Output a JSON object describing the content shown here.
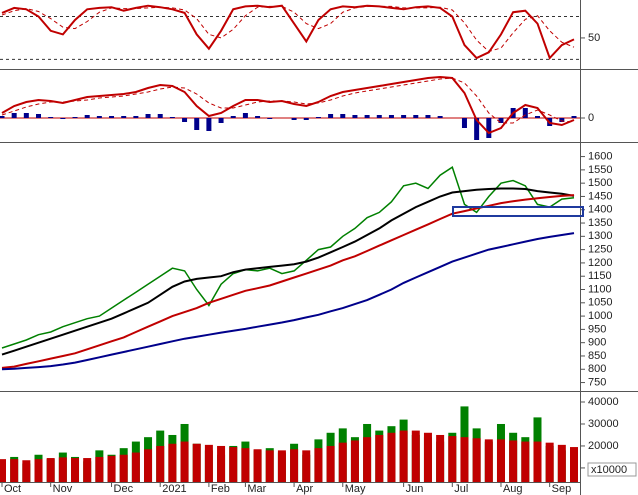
{
  "chart_data": [
    {
      "type": "line",
      "ylim": [
        8,
        103
      ],
      "yticks": [
        50
      ],
      "hlines": [
        80,
        20
      ],
      "series": [
        {
          "color": "#c00000",
          "values": [
            85,
            92,
            90,
            80,
            60,
            55,
            75,
            90,
            92,
            93,
            88,
            92,
            95,
            93,
            90,
            85,
            55,
            35,
            60,
            90,
            94,
            95,
            93,
            95,
            70,
            45,
            75,
            90,
            94,
            93,
            95,
            94,
            92,
            90,
            93,
            94,
            92,
            80,
            40,
            22,
            30,
            55,
            86,
            88,
            70,
            22,
            40,
            48
          ]
        },
        {
          "color": "#c00000",
          "dash": true,
          "values": [
            82,
            88,
            91,
            87,
            77,
            65,
            63,
            73,
            86,
            92,
            91,
            91,
            92,
            93,
            92,
            89,
            77,
            55,
            50,
            62,
            81,
            93,
            94,
            94,
            86,
            70,
            63,
            70,
            86,
            92,
            94,
            94,
            94,
            92,
            92,
            92,
            93,
            89,
            71,
            47,
            31,
            36,
            57,
            76,
            81,
            60,
            44,
            37
          ]
        }
      ]
    },
    {
      "type": "line",
      "ylim": [
        -22,
        46
      ],
      "yticks": [
        0
      ],
      "series": [
        {
          "type": "bar",
          "color": "#00008b",
          "values": [
            2,
            5,
            5,
            4,
            1,
            -1,
            1,
            3,
            2,
            2,
            2,
            2,
            4,
            4,
            1,
            -4,
            -12,
            -13,
            -5,
            2,
            5,
            2,
            -1,
            0,
            -2,
            -2,
            1,
            4,
            4,
            3,
            3,
            3,
            3,
            3,
            3,
            3,
            2,
            0,
            -10,
            -24,
            -20,
            -5,
            10,
            10,
            2,
            -8,
            -4,
            2
          ]
        },
        {
          "color": "#c00000",
          "values": [
            5,
            12,
            16,
            18,
            17,
            15,
            18,
            21,
            22,
            23,
            24,
            26,
            30,
            33,
            32,
            26,
            12,
            2,
            5,
            12,
            18,
            18,
            16,
            17,
            14,
            12,
            16,
            22,
            26,
            28,
            30,
            32,
            34,
            36,
            38,
            40,
            41,
            40,
            25,
            -2,
            -15,
            -10,
            5,
            13,
            10,
            -5,
            -7,
            -2
          ]
        },
        {
          "color": "#c00000",
          "dash": true,
          "values": [
            3,
            7,
            11,
            14,
            16,
            16,
            17,
            18,
            20,
            21,
            22,
            24,
            26,
            29,
            31,
            30,
            24,
            15,
            10,
            10,
            13,
            16,
            17,
            17,
            16,
            14,
            15,
            18,
            22,
            25,
            27,
            29,
            31,
            33,
            35,
            37,
            39,
            40,
            35,
            22,
            5,
            -5,
            -5,
            3,
            8,
            3,
            -3,
            -4
          ]
        }
      ]
    },
    {
      "type": "line",
      "ylim": [
        722,
        1636
      ],
      "yticks": [
        1600,
        1550,
        1500,
        1450,
        1400,
        1350,
        1300,
        1250,
        1200,
        1150,
        1100,
        1050,
        1000,
        950,
        900,
        850,
        800,
        750
      ],
      "series": [
        {
          "color": "#008000",
          "values": [
            880,
            895,
            910,
            930,
            940,
            960,
            975,
            990,
            1000,
            1030,
            1060,
            1090,
            1120,
            1150,
            1180,
            1170,
            1100,
            1040,
            1120,
            1160,
            1175,
            1170,
            1180,
            1160,
            1170,
            1210,
            1250,
            1260,
            1300,
            1330,
            1370,
            1390,
            1430,
            1490,
            1500,
            1480,
            1530,
            1560,
            1420,
            1390,
            1450,
            1500,
            1510,
            1490,
            1420,
            1410,
            1440,
            1445
          ]
        },
        {
          "color": "#000000",
          "values": [
            855,
            870,
            885,
            900,
            915,
            930,
            945,
            960,
            975,
            990,
            1010,
            1030,
            1050,
            1080,
            1110,
            1130,
            1140,
            1145,
            1150,
            1165,
            1175,
            1180,
            1185,
            1190,
            1195,
            1205,
            1220,
            1240,
            1260,
            1280,
            1305,
            1330,
            1360,
            1385,
            1410,
            1430,
            1450,
            1465,
            1470,
            1475,
            1478,
            1480,
            1480,
            1478,
            1470,
            1465,
            1460,
            1452
          ]
        },
        {
          "color": "#c00000",
          "values": [
            805,
            810,
            820,
            830,
            840,
            850,
            860,
            875,
            890,
            905,
            920,
            940,
            960,
            980,
            1000,
            1015,
            1030,
            1050,
            1065,
            1080,
            1095,
            1105,
            1115,
            1130,
            1145,
            1160,
            1175,
            1190,
            1210,
            1225,
            1245,
            1265,
            1285,
            1305,
            1325,
            1345,
            1365,
            1385,
            1395,
            1405,
            1415,
            1425,
            1432,
            1438,
            1443,
            1448,
            1452,
            1455
          ]
        },
        {
          "color": "#00008b",
          "values": [
            800,
            802,
            805,
            808,
            812,
            818,
            825,
            835,
            845,
            855,
            865,
            875,
            885,
            895,
            905,
            915,
            922,
            930,
            938,
            945,
            952,
            960,
            968,
            976,
            985,
            995,
            1005,
            1018,
            1030,
            1045,
            1060,
            1080,
            1100,
            1125,
            1145,
            1165,
            1185,
            1205,
            1220,
            1235,
            1250,
            1260,
            1270,
            1280,
            1290,
            1298,
            1305,
            1312
          ]
        }
      ]
    },
    {
      "type": "bar",
      "ylim": [
        3600,
        44100
      ],
      "yticks": [
        40000,
        30000,
        20000,
        10000
      ],
      "unit_label": "x10000",
      "categories": [
        "Oct",
        null,
        null,
        null,
        "Nov",
        null,
        null,
        null,
        null,
        "Dec",
        null,
        null,
        null,
        "2021",
        null,
        null,
        null,
        "Feb",
        null,
        null,
        "Mar",
        null,
        null,
        null,
        "Apr",
        null,
        null,
        null,
        "May",
        null,
        null,
        null,
        null,
        "Jun",
        null,
        null,
        null,
        "Jul",
        null,
        null,
        null,
        "Aug",
        null,
        null,
        null,
        "Sep",
        null,
        null
      ],
      "series": [
        {
          "type": "bar",
          "color": "#008000",
          "values": [
            13000,
            15000,
            12000,
            16000,
            14000,
            17000,
            15000,
            13000,
            18000,
            16000,
            19000,
            22000,
            24000,
            27000,
            25000,
            30000,
            21000,
            18000,
            16000,
            20000,
            22000,
            18000,
            19000,
            17000,
            21000,
            16000,
            23000,
            26000,
            28000,
            24000,
            30000,
            27000,
            29000,
            32000,
            25000,
            24000,
            22000,
            26000,
            38000,
            28000,
            22000,
            30000,
            26000,
            24000,
            33000,
            20000,
            18000,
            16000
          ]
        },
        {
          "color": "#c00000",
          "values": [
            14000,
            14000,
            13500,
            14000,
            14500,
            14800,
            14500,
            14500,
            15000,
            15500,
            16000,
            17000,
            18500,
            20000,
            21000,
            22000,
            21000,
            20500,
            20000,
            19500,
            19000,
            18500,
            18000,
            18000,
            18500,
            18000,
            19000,
            20000,
            21500,
            22500,
            24000,
            25000,
            26000,
            27000,
            27000,
            26000,
            25000,
            24500,
            24000,
            23500,
            23000,
            23000,
            22500,
            22000,
            22000,
            21500,
            20500,
            19500
          ]
        }
      ]
    }
  ]
}
